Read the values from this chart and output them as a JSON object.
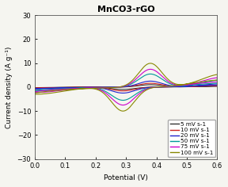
{
  "title": "MnCO3-rGO",
  "xlabel": "Potential (V)",
  "ylabel": "Current density (A g⁻¹)",
  "xlim": [
    0.0,
    0.6
  ],
  "ylim": [
    -30,
    30
  ],
  "yticks": [
    -30,
    -20,
    -10,
    0,
    10,
    20,
    30
  ],
  "xticks": [
    0.0,
    0.1,
    0.2,
    0.3,
    0.4,
    0.5,
    0.6
  ],
  "scan_rates": [
    {
      "label": "5 mV s-1",
      "color": "#333333",
      "lw": 0.8,
      "scale": 1.0
    },
    {
      "label": "10 mV s-1",
      "color": "#cc2222",
      "lw": 0.8,
      "scale": 1.6
    },
    {
      "label": "20 mV s-1",
      "color": "#2222cc",
      "lw": 0.8,
      "scale": 2.5
    },
    {
      "label": "50 mV s-1",
      "color": "#009999",
      "lw": 0.8,
      "scale": 5.5
    },
    {
      "label": "75 mV s-1",
      "color": "#cc00cc",
      "lw": 0.8,
      "scale": 7.5
    },
    {
      "label": "100 mV s-1",
      "color": "#888800",
      "lw": 0.8,
      "scale": 10.0
    }
  ],
  "background_color": "#f5f5f0",
  "title_fontsize": 8,
  "axis_fontsize": 6.5,
  "tick_fontsize": 6,
  "legend_fontsize": 5.2
}
